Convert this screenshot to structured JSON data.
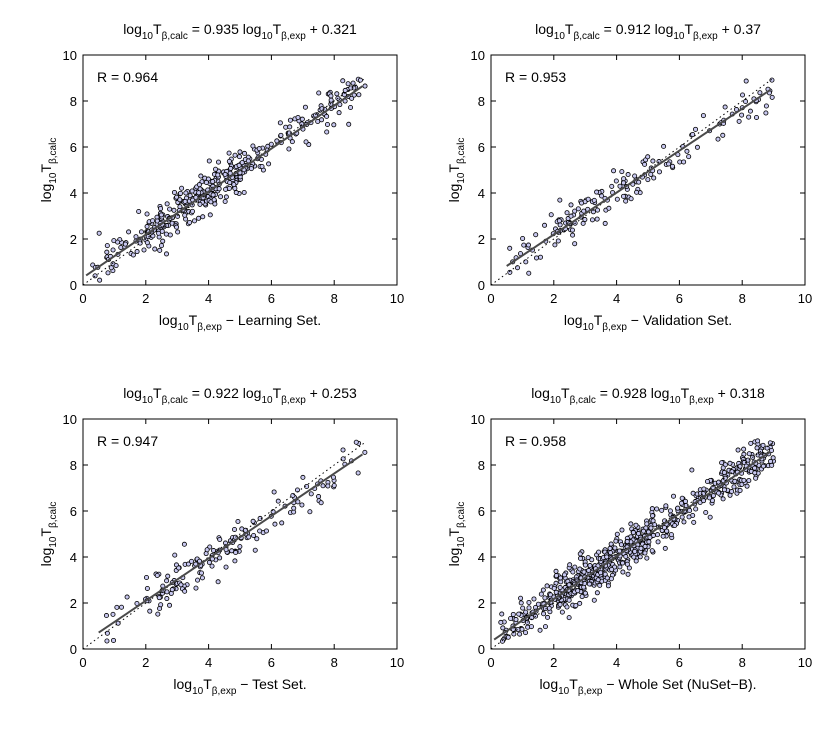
{
  "figure": {
    "panel_order": [
      "learning",
      "validation",
      "test",
      "whole"
    ]
  },
  "chart_data": [
    {
      "id": "learning",
      "type": "scatter",
      "title": {
        "lhs_base": "log",
        "lhs_sub1": "10",
        "lhs_main": "T",
        "lhs_sub2": "β,calc",
        "mid": " = 0.935 log",
        "rhs_sub1": "10",
        "rhs_main": "T",
        "rhs_sub2": "β,exp",
        "tail": " + 0.321"
      },
      "xlabel": {
        "base": "log",
        "sub1": "10",
        "main": "T",
        "sub2": "β,exp",
        "tail": "  −  Learning Set."
      },
      "ylabel": {
        "base": "log",
        "sub1": "10",
        "main": "T",
        "sub2": "β,calc"
      },
      "annotation": "R = 0.964",
      "xlim": [
        0,
        10
      ],
      "ylim": [
        0,
        10
      ],
      "xticks": [
        0,
        2,
        4,
        6,
        8,
        10
      ],
      "yticks": [
        0,
        2,
        4,
        6,
        8,
        10
      ],
      "tick_labels": [
        "0",
        "2",
        "4",
        "6",
        "8",
        "10"
      ],
      "fit": {
        "slope": 0.935,
        "intercept": 0.321,
        "x_range": [
          0.1,
          8.9
        ]
      },
      "identity_line": [
        0,
        9
      ],
      "n_points": 420,
      "x_range": [
        0.3,
        9.0
      ],
      "scatter_sd": 0.42,
      "seed": 11,
      "marker_fill": "#c8c8f0",
      "marker_edge": "#000000"
    },
    {
      "id": "validation",
      "type": "scatter",
      "title": {
        "lhs_base": "log",
        "lhs_sub1": "10",
        "lhs_main": "T",
        "lhs_sub2": "β,calc",
        "mid": " = 0.912 log",
        "rhs_sub1": "10",
        "rhs_main": "T",
        "rhs_sub2": "β,exp",
        "tail": " + 0.37"
      },
      "xlabel": {
        "base": "log",
        "sub1": "10",
        "main": "T",
        "sub2": "β,exp",
        "tail": "  −  Validation Set."
      },
      "ylabel": {
        "base": "log",
        "sub1": "10",
        "main": "T",
        "sub2": "β,calc"
      },
      "annotation": "R = 0.953",
      "xlim": [
        0,
        10
      ],
      "ylim": [
        0,
        10
      ],
      "xticks": [
        0,
        2,
        4,
        6,
        8,
        10
      ],
      "yticks": [
        0,
        2,
        4,
        6,
        8,
        10
      ],
      "tick_labels": [
        "0",
        "2",
        "4",
        "6",
        "8",
        "10"
      ],
      "fit": {
        "slope": 0.912,
        "intercept": 0.37,
        "x_range": [
          0.5,
          8.9
        ]
      },
      "identity_line": [
        0,
        9
      ],
      "n_points": 170,
      "x_range": [
        0.5,
        9.0
      ],
      "scatter_sd": 0.45,
      "seed": 23,
      "marker_fill": "#c8c8f0",
      "marker_edge": "#000000"
    },
    {
      "id": "test",
      "type": "scatter",
      "title": {
        "lhs_base": "log",
        "lhs_sub1": "10",
        "lhs_main": "T",
        "lhs_sub2": "β,calc",
        "mid": " = 0.922 log",
        "rhs_sub1": "10",
        "rhs_main": "T",
        "rhs_sub2": "β,exp",
        "tail": " + 0.253"
      },
      "xlabel": {
        "base": "log",
        "sub1": "10",
        "main": "T",
        "sub2": "β,exp",
        "tail": "  −  Test Set."
      },
      "ylabel": {
        "base": "log",
        "sub1": "10",
        "main": "T",
        "sub2": "β,calc"
      },
      "annotation": "R = 0.947",
      "xlim": [
        0,
        10
      ],
      "ylim": [
        0,
        10
      ],
      "xticks": [
        0,
        2,
        4,
        6,
        8,
        10
      ],
      "yticks": [
        0,
        2,
        4,
        6,
        8,
        10
      ],
      "tick_labels": [
        "0",
        "2",
        "4",
        "6",
        "8",
        "10"
      ],
      "fit": {
        "slope": 0.922,
        "intercept": 0.253,
        "x_range": [
          0.5,
          8.9
        ]
      },
      "identity_line": [
        0,
        9
      ],
      "n_points": 170,
      "x_range": [
        0.5,
        9.0
      ],
      "scatter_sd": 0.48,
      "seed": 37,
      "marker_fill": "#c8c8f0",
      "marker_edge": "#000000"
    },
    {
      "id": "whole",
      "type": "scatter",
      "title": {
        "lhs_base": "log",
        "lhs_sub1": "10",
        "lhs_main": "T",
        "lhs_sub2": "β,calc",
        "mid": " = 0.928 log",
        "rhs_sub1": "10",
        "rhs_main": "T",
        "rhs_sub2": "β,exp",
        "tail": " + 0.318"
      },
      "xlabel": {
        "base": "log",
        "sub1": "10",
        "main": "T",
        "sub2": "β,exp",
        "tail": "  −  Whole Set (NuSet−B)."
      },
      "ylabel": {
        "base": "log",
        "sub1": "10",
        "main": "T",
        "sub2": "β,calc"
      },
      "annotation": "R = 0.958",
      "xlim": [
        0,
        10
      ],
      "ylim": [
        0,
        10
      ],
      "xticks": [
        0,
        2,
        4,
        6,
        8,
        10
      ],
      "yticks": [
        0,
        2,
        4,
        6,
        8,
        10
      ],
      "tick_labels": [
        "0",
        "2",
        "4",
        "6",
        "8",
        "10"
      ],
      "fit": {
        "slope": 0.928,
        "intercept": 0.318,
        "x_range": [
          0.1,
          8.9
        ]
      },
      "identity_line": [
        0,
        9
      ],
      "n_points": 720,
      "x_range": [
        0.3,
        9.0
      ],
      "scatter_sd": 0.44,
      "seed": 53,
      "marker_fill": "#c8c8f0",
      "marker_edge": "#000000"
    }
  ]
}
